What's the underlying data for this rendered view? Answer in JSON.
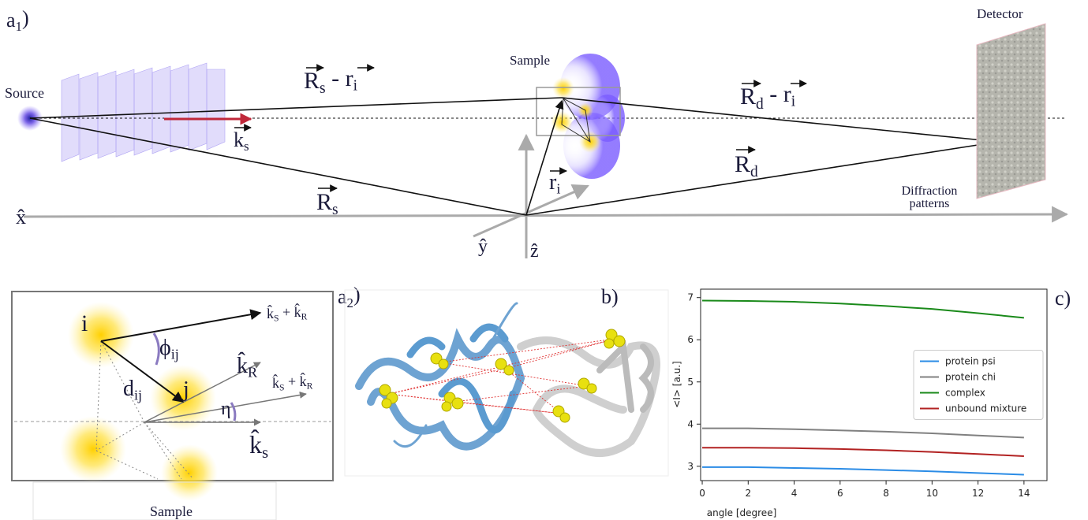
{
  "a1": {
    "label": {
      "parts": [
        {
          "text": "a",
          "sub": "1"
        },
        {
          "text": ")"
        }
      ]
    },
    "source": "Source",
    "sample": "Sample",
    "detector": "Detector",
    "diffraction": [
      "Diffraction",
      "patterns"
    ],
    "rs_ri": {
      "parts": [
        {
          "text": "R",
          "sub": "s"
        },
        {
          "text": " - "
        },
        {
          "text": "r",
          "sub": "i"
        }
      ]
    },
    "rd_ri": {
      "parts": [
        {
          "text": "R",
          "sub": "d"
        },
        {
          "text": " - "
        },
        {
          "text": "r",
          "sub": "i"
        }
      ]
    },
    "ks": {
      "parts": [
        {
          "text": "k",
          "sub": "s"
        }
      ]
    },
    "rs": {
      "parts": [
        {
          "text": "R",
          "sub": "s"
        }
      ]
    },
    "ri": {
      "parts": [
        {
          "text": "r",
          "sub": "i"
        }
      ]
    },
    "rd": {
      "parts": [
        {
          "text": "R",
          "sub": "d"
        }
      ]
    },
    "x_axis": "x̂",
    "y_axis": "ŷ",
    "z_axis": "ẑ"
  },
  "a2": {
    "label": {
      "parts": [
        {
          "text": "a",
          "sub": "2"
        },
        {
          "text": ")"
        }
      ]
    },
    "i": "i",
    "j": "j",
    "phi": {
      "parts": [
        {
          "text": "ϕ",
          "sub": "ij"
        }
      ]
    },
    "d": {
      "parts": [
        {
          "text": "d",
          "sub": "ij"
        }
      ]
    },
    "eta": "η",
    "kr": {
      "parts": [
        {
          "text": "k̂",
          "sub": "R"
        }
      ]
    },
    "ks_kr_top": {
      "parts": [
        {
          "text": "k̂",
          "sub": "S"
        },
        {
          "text": " + "
        },
        {
          "text": "k̂",
          "sub": "R"
        }
      ]
    },
    "ks_kr_mid": {
      "parts": [
        {
          "text": "k̂",
          "sub": "S"
        },
        {
          "text": " + "
        },
        {
          "text": "k̂",
          "sub": "R"
        }
      ]
    },
    "ks": {
      "parts": [
        {
          "text": "k̂",
          "sub": "s"
        }
      ]
    },
    "sample": "Sample"
  },
  "b": {
    "label": "b)"
  },
  "c": {
    "label": "c)"
  },
  "chart_data": {
    "type": "line",
    "x_label": "angle [degree]",
    "y_label": "<I> [a.u.]",
    "x": [
      0,
      2,
      4,
      6,
      8,
      10,
      12,
      14
    ],
    "series": [
      {
        "name": "protein psi",
        "color": "#2b8ce6",
        "values": [
          2.98,
          2.98,
          2.96,
          2.94,
          2.91,
          2.88,
          2.84,
          2.8
        ]
      },
      {
        "name": "protein chi",
        "color": "#808080",
        "values": [
          3.9,
          3.9,
          3.88,
          3.85,
          3.82,
          3.78,
          3.73,
          3.68
        ]
      },
      {
        "name": "complex",
        "color": "#1a8a1a",
        "values": [
          6.93,
          6.92,
          6.9,
          6.86,
          6.8,
          6.73,
          6.63,
          6.52
        ]
      },
      {
        "name": "unbound mixture",
        "color": "#b22222",
        "values": [
          3.44,
          3.44,
          3.43,
          3.41,
          3.38,
          3.34,
          3.29,
          3.24
        ]
      }
    ],
    "xlim": [
      -0.07,
      15
    ],
    "ylim": [
      2.66,
      7.2
    ],
    "xticks": [
      0,
      2,
      4,
      6,
      8,
      10,
      12,
      14
    ],
    "yticks": [
      3,
      4,
      5,
      6,
      7
    ],
    "legend": "center right"
  }
}
